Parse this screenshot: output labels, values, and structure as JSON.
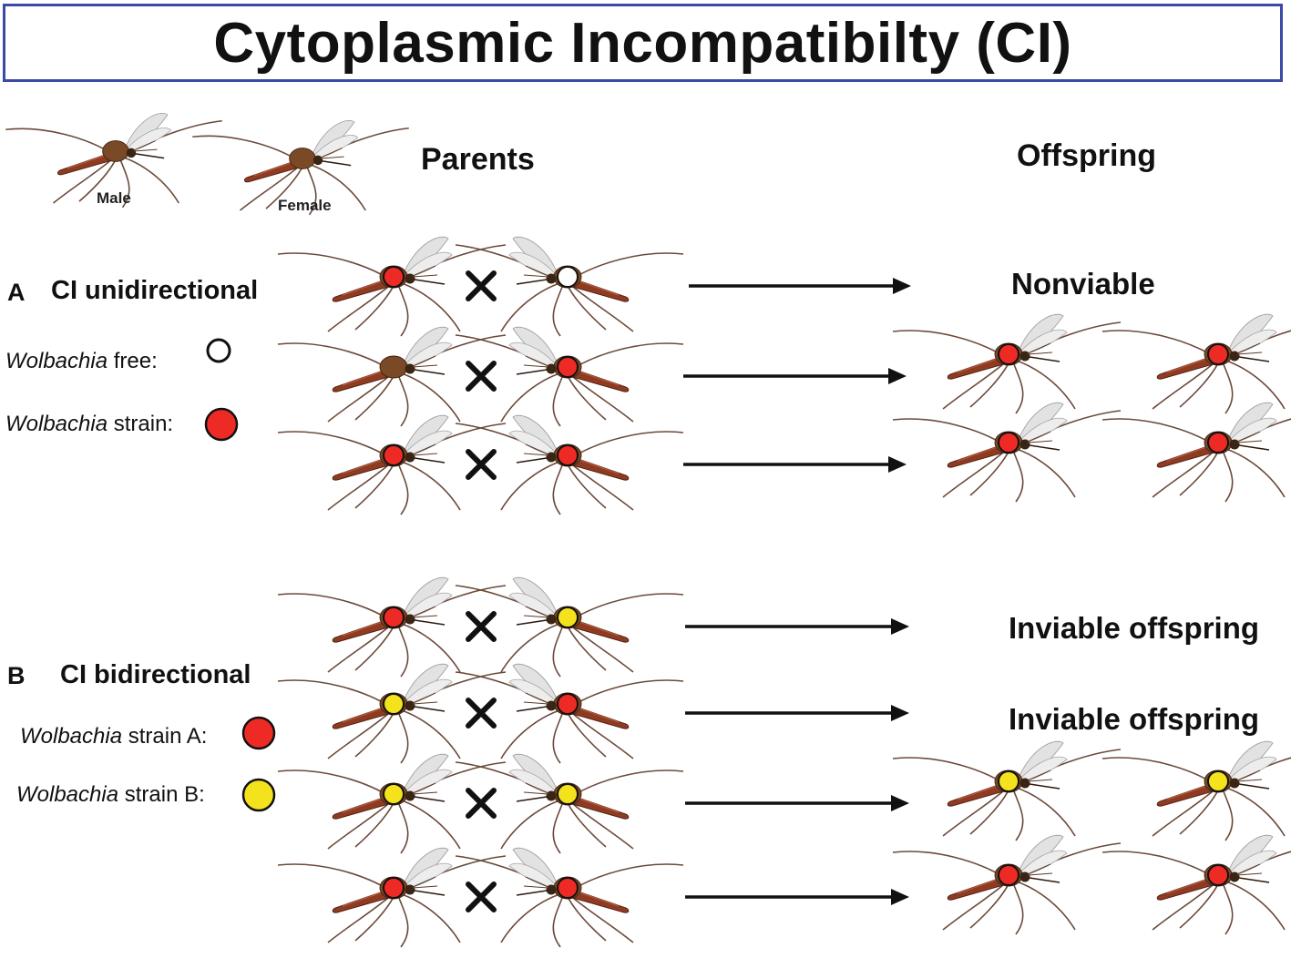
{
  "title": "Cytoplasmic Incompatibilty (CI)",
  "headers": {
    "parents": "Parents",
    "offspring": "Offspring"
  },
  "key": {
    "male": "Male",
    "female": "Female"
  },
  "sectionA": {
    "letter": "A",
    "label": "CI unidirectional",
    "legend": [
      {
        "italic": "Wolbachia",
        "rest": " free:",
        "dot": "none"
      },
      {
        "italic": "Wolbachia",
        "rest": " strain:",
        "dot": "red"
      }
    ],
    "crosses": [
      {
        "male": "red",
        "female": "none",
        "outcome": "Nonviable",
        "offspring": []
      },
      {
        "male": "plain",
        "female": "red",
        "outcome": "",
        "offspring": [
          "red",
          "red"
        ]
      },
      {
        "male": "red",
        "female": "red",
        "outcome": "",
        "offspring": [
          "red",
          "red"
        ]
      }
    ]
  },
  "sectionB": {
    "letter": "B",
    "label": "CI bidirectional",
    "legend": [
      {
        "italic": "Wolbachia",
        "rest": " strain A:",
        "dot": "red"
      },
      {
        "italic": "Wolbachia",
        "rest": " strain B:",
        "dot": "yellow"
      }
    ],
    "crosses": [
      {
        "male": "red",
        "female": "yellow",
        "outcome": "Inviable offspring",
        "offspring": []
      },
      {
        "male": "yellow",
        "female": "red",
        "outcome": "Inviable offspring",
        "offspring": []
      },
      {
        "male": "yellow",
        "female": "yellow",
        "outcome": "",
        "offspring": [
          "yellow",
          "yellow"
        ]
      },
      {
        "male": "red",
        "female": "red",
        "outcome": "",
        "offspring": [
          "red",
          "red"
        ]
      }
    ]
  },
  "colors": {
    "red": "#ee2a24",
    "yellow": "#f4e21c",
    "border": "#3a4aa6",
    "mosquito_body": "#8f3b22",
    "mosquito_thorax": "#7a4a26",
    "leg": "#6b4a3a"
  }
}
